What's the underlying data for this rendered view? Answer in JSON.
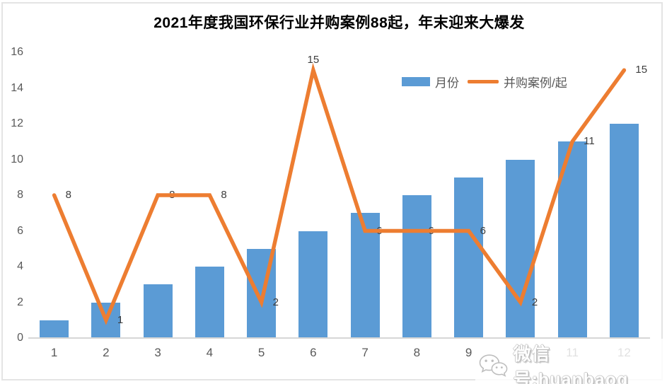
{
  "title": "2021年度我国环保行业并购案例88起，年末迎来大爆发",
  "legend": {
    "bar_label": "月份",
    "line_label": "并购案例/起"
  },
  "watermark": {
    "icon": "wechat-icon",
    "text": "微信号:huanbaoq"
  },
  "colors": {
    "bar": "#5B9BD5",
    "line": "#ED7D31",
    "axis_text": "#595959",
    "data_label_text": "#3d3d3d",
    "axis_line": "#d6d6d6"
  },
  "chart_data": {
    "type": "bar",
    "title": "2021年度我国环保行业并购案例88起，年末迎来大爆发",
    "categories": [
      "1",
      "2",
      "3",
      "4",
      "5",
      "6",
      "7",
      "8",
      "9",
      "10",
      "11",
      "12"
    ],
    "series": [
      {
        "name": "月份",
        "type": "bar",
        "color": "#5B9BD5",
        "values": [
          1,
          2,
          3,
          4,
          5,
          6,
          7,
          8,
          9,
          10,
          11,
          12
        ]
      },
      {
        "name": "并购案例/起",
        "type": "line",
        "color": "#ED7D31",
        "values": [
          8,
          1,
          8,
          8,
          2,
          15,
          6,
          6,
          6,
          2,
          11,
          15
        ],
        "data_labels": [
          8,
          1,
          8,
          8,
          2,
          15,
          6,
          6,
          6,
          2,
          11,
          15
        ],
        "label_positions": [
          "right",
          "right",
          "right",
          "right",
          "right",
          "above",
          "right",
          "right",
          "right",
          "right",
          "right",
          "right"
        ]
      }
    ],
    "xlabel": "",
    "ylabel": "",
    "y_axis": {
      "min": 0,
      "max": 16,
      "step": 2
    },
    "grid": false,
    "legend_position": "top-right"
  }
}
